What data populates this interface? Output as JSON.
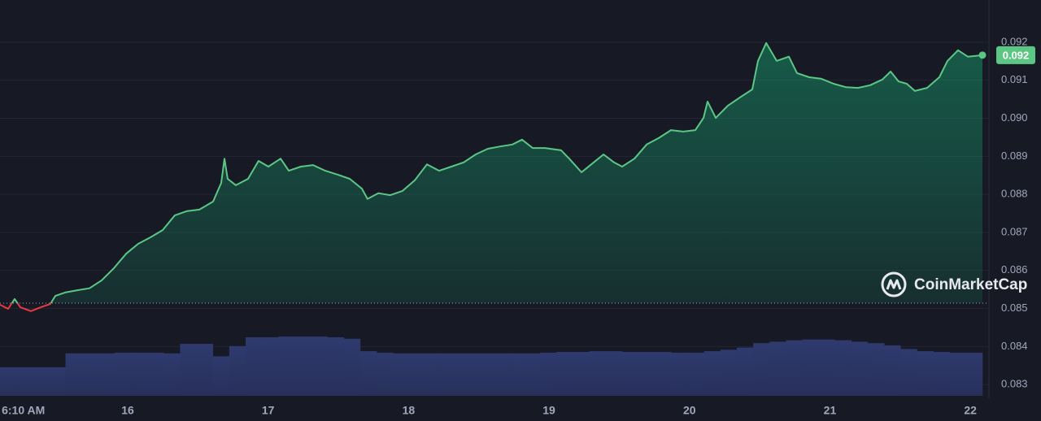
{
  "chart_data": {
    "type": "line",
    "x": [
      15.091,
      15.149,
      15.195,
      15.236,
      15.311,
      15.381,
      15.45,
      15.485,
      15.554,
      15.641,
      15.728,
      15.815,
      15.902,
      15.989,
      16.075,
      16.162,
      16.249,
      16.336,
      16.423,
      16.51,
      16.608,
      16.666,
      16.689,
      16.712,
      16.77,
      16.857,
      16.932,
      17.002,
      17.089,
      17.147,
      17.233,
      17.32,
      17.407,
      17.494,
      17.581,
      17.668,
      17.708,
      17.784,
      17.87,
      17.957,
      18.044,
      18.131,
      18.218,
      18.305,
      18.392,
      18.478,
      18.565,
      18.652,
      18.739,
      18.808,
      18.884,
      18.971,
      19.086,
      19.144,
      19.231,
      19.318,
      19.388,
      19.463,
      19.521,
      19.608,
      19.695,
      19.781,
      19.868,
      19.955,
      20.042,
      20.1,
      20.129,
      20.187,
      20.273,
      20.36,
      20.447,
      20.488,
      20.546,
      20.621,
      20.708,
      20.766,
      20.852,
      20.939,
      21.026,
      21.113,
      21.2,
      21.287,
      21.374,
      21.432,
      21.489,
      21.547,
      21.605,
      21.692,
      21.779,
      21.837,
      21.912,
      21.982,
      22.086
    ],
    "series": [
      {
        "color": "#5cc785",
        "down_color": "#ea3943",
        "values": [
          0.0851,
          0.08499,
          0.08525,
          0.08503,
          0.08493,
          0.08503,
          0.08512,
          0.08533,
          0.08542,
          0.08548,
          0.08553,
          0.08574,
          0.08606,
          0.08644,
          0.0867,
          0.08687,
          0.08706,
          0.08745,
          0.08756,
          0.0876,
          0.08781,
          0.0883,
          0.08894,
          0.08841,
          0.08824,
          0.08841,
          0.08888,
          0.08873,
          0.08894,
          0.08862,
          0.08873,
          0.08877,
          0.08862,
          0.08852,
          0.08841,
          0.08815,
          0.08788,
          0.08803,
          0.08798,
          0.08809,
          0.08837,
          0.08879,
          0.08862,
          0.08873,
          0.08884,
          0.08905,
          0.0892,
          0.08926,
          0.08931,
          0.08944,
          0.08922,
          0.08922,
          0.08916,
          0.08894,
          0.08858,
          0.08884,
          0.08905,
          0.08884,
          0.08873,
          0.08894,
          0.08931,
          0.08948,
          0.08969,
          0.08965,
          0.08969,
          0.09001,
          0.09044,
          0.09001,
          0.09033,
          0.09055,
          0.09076,
          0.09151,
          0.09198,
          0.09151,
          0.09162,
          0.09119,
          0.09108,
          0.09104,
          0.09091,
          0.09082,
          0.0908,
          0.09087,
          0.09102,
          0.09123,
          0.09097,
          0.09091,
          0.09072,
          0.0908,
          0.09108,
          0.09151,
          0.09179,
          0.09162,
          0.09166
        ]
      }
    ],
    "baseline": 0.08514,
    "last_label": "0.092",
    "xlim": [
      15.091,
      22.086
    ],
    "xticks": [
      {
        "value": 15.257,
        "label": "6:10 AM"
      },
      16,
      17,
      18,
      19,
      20,
      21,
      22
    ],
    "ylim": [
      0.08264,
      0.09311
    ],
    "yticks": [
      0.083,
      0.084,
      0.085,
      0.086,
      0.087,
      0.088,
      0.089,
      {
        "value": 0.09,
        "label": "0.090"
      },
      0.091,
      0.092
    ],
    "grid": true,
    "volume": {
      "color": "#2e3a6e",
      "vlim": [
        0,
        100
      ],
      "values": [
        39,
        39,
        39,
        39,
        58,
        58,
        58,
        59,
        59,
        59,
        58,
        71,
        71,
        54,
        68,
        80,
        80,
        81,
        81,
        81,
        80,
        78,
        61,
        59,
        58,
        58,
        58,
        58,
        58,
        58,
        58,
        58,
        58,
        59,
        60,
        60,
        61,
        61,
        60,
        60,
        60,
        59,
        59,
        61,
        63,
        66,
        72,
        74,
        76,
        77,
        77,
        76,
        74,
        72,
        69,
        64,
        61,
        60,
        59,
        59
      ]
    },
    "watermark": "CoinMarketCap"
  }
}
